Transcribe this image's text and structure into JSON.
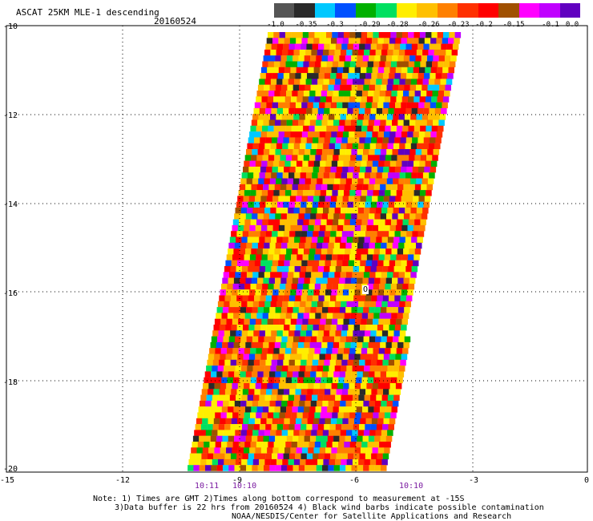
{
  "header": {
    "title": "ASCAT 25KM MLE-1 descending",
    "date": "20160524"
  },
  "colorbar": {
    "colors": [
      "#555555",
      "#2a2a2a",
      "#00c8ff",
      "#0050ff",
      "#00b000",
      "#00e060",
      "#ffee00",
      "#ffc000",
      "#ff8000",
      "#ff3000",
      "#ff0000",
      "#a05000",
      "#ff00ff",
      "#c000ff",
      "#6000c0"
    ],
    "labels": [
      "-1.0",
      "-0.35",
      "-0.3",
      "-0.29",
      "-0.28",
      "-0.26",
      "-0.23",
      "-0.2",
      "-0.15",
      "-0.1",
      "0.0"
    ]
  },
  "axes": {
    "y_ticks": [
      "-10",
      "-12",
      "-14",
      "-16",
      "-18",
      "-20"
    ],
    "x_ticks": [
      "-15",
      "-12",
      "-9",
      "-6",
      "-3",
      "0"
    ]
  },
  "swath": {
    "description_colors": [
      "#ff0000",
      "#ff3000",
      "#ff8000",
      "#ffc000",
      "#ffee00",
      "#00b000",
      "#0050ff",
      "#00c8ff",
      "#a05000",
      "#ff00ff",
      "#c000ff",
      "#6000c0",
      "#2a2a2a",
      "#00e060"
    ]
  },
  "marker": {
    "label": "O"
  },
  "times": [
    "10:11",
    "10:10",
    "10:10"
  ],
  "notes": {
    "line1": "Note: 1) Times are GMT 2)Times along bottom correspond to measurement at -15S",
    "line2": "3)Data buffer is 22 hrs from 20160524 4) Black wind barbs indicate possible contamination",
    "line3": "NOAA/NESDIS/Center for Satellite Applications and Research"
  }
}
